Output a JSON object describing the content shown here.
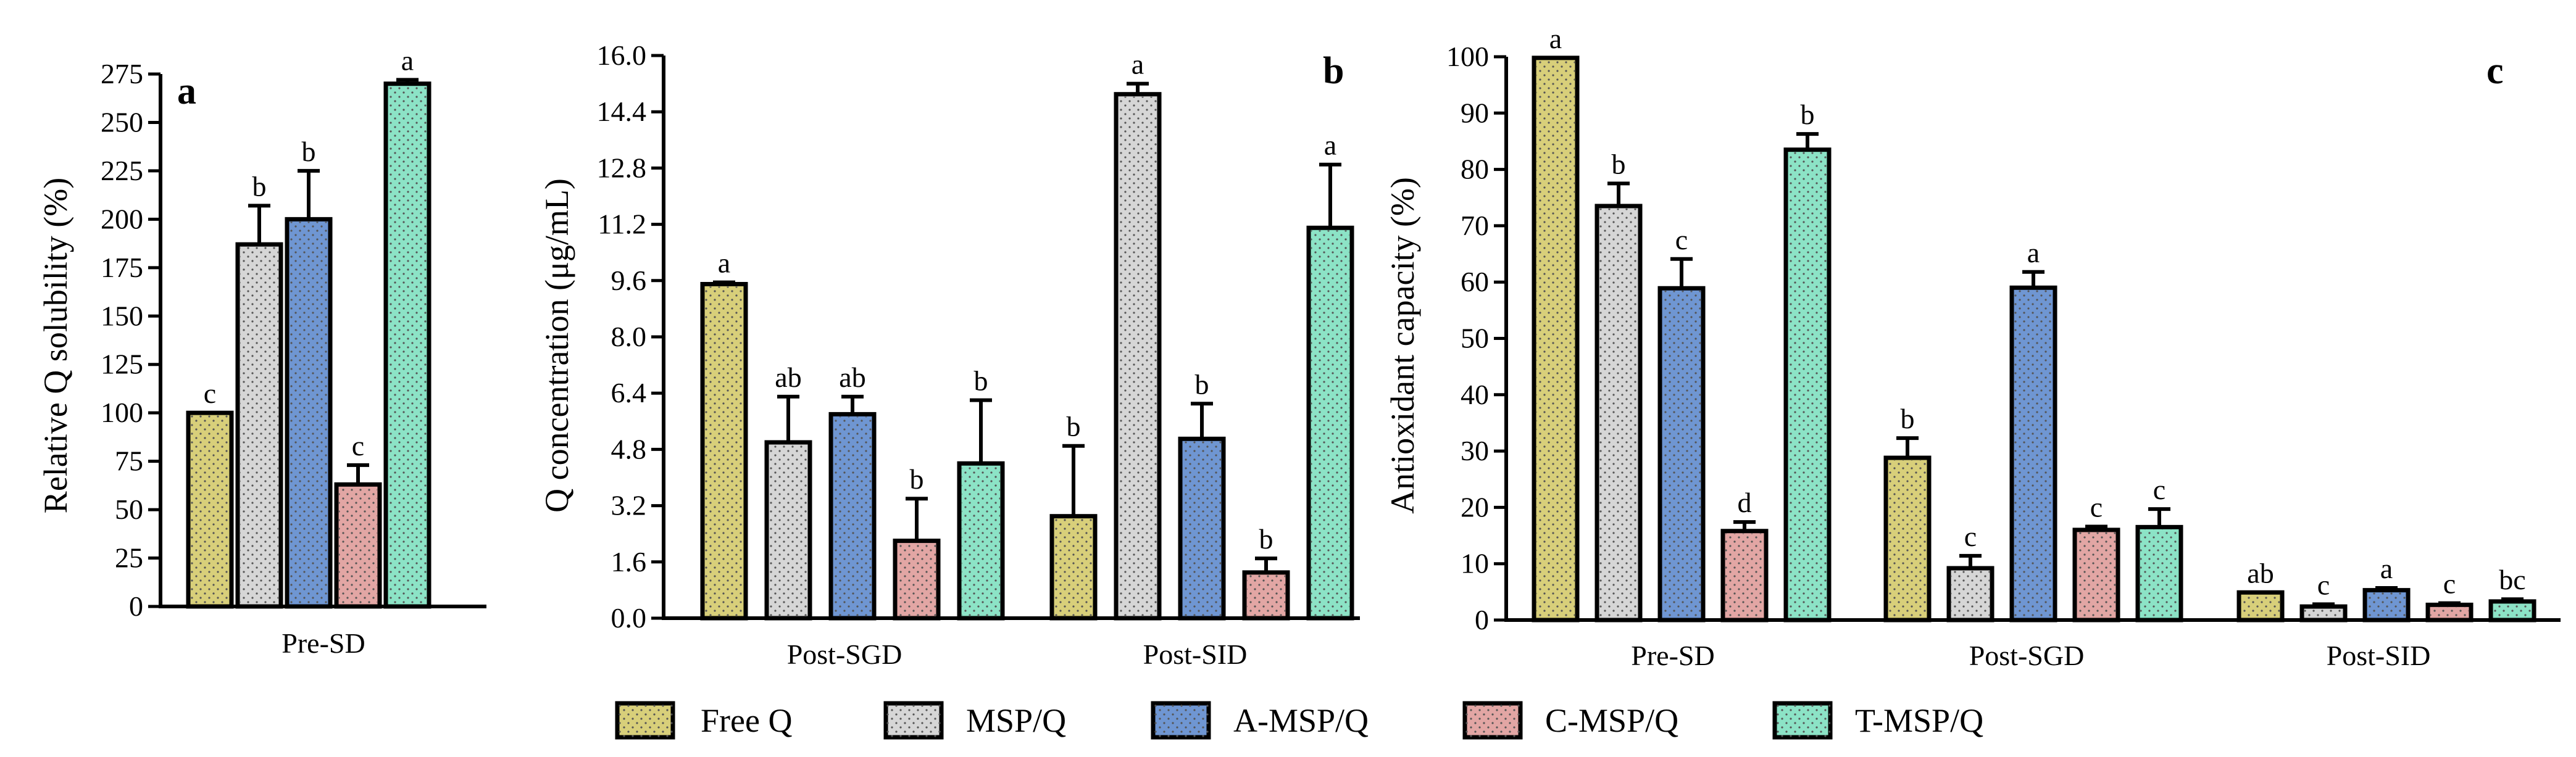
{
  "legend": [
    {
      "label": "Free Q",
      "color": "#d8cf7a"
    },
    {
      "label": "MSP/Q",
      "color": "#d6d6d6"
    },
    {
      "label": "A-MSP/Q",
      "color": "#6f96d2"
    },
    {
      "label": "C-MSP/Q",
      "color": "#e2a6a4"
    },
    {
      "label": "T-MSP/Q",
      "color": "#8ce3c6"
    }
  ],
  "chart_data": [
    {
      "panel": "a",
      "type": "bar",
      "ylabel": "Relative Q solubility (%)",
      "ylim": [
        0,
        275
      ],
      "yticks": [
        0,
        25,
        50,
        75,
        100,
        125,
        150,
        175,
        200,
        225,
        250,
        275
      ],
      "categories": [
        "Pre-SD"
      ],
      "series": [
        {
          "name": "Free Q",
          "values": [
            100
          ],
          "errors": [
            0
          ],
          "labels": [
            "c"
          ]
        },
        {
          "name": "MSP/Q",
          "values": [
            187
          ],
          "errors": [
            20
          ],
          "labels": [
            "b"
          ]
        },
        {
          "name": "A-MSP/Q",
          "values": [
            200
          ],
          "errors": [
            25
          ],
          "labels": [
            "b"
          ]
        },
        {
          "name": "C-MSP/Q",
          "values": [
            63
          ],
          "errors": [
            10
          ],
          "labels": [
            "c"
          ]
        },
        {
          "name": "T-MSP/Q",
          "values": [
            270
          ],
          "errors": [
            2
          ],
          "labels": [
            "a"
          ]
        }
      ]
    },
    {
      "panel": "b",
      "type": "bar",
      "ylabel": "Q concentration (μg/mL)",
      "ylim": [
        0,
        16
      ],
      "yticks": [
        "0.0",
        "1.6",
        "3.2",
        "4.8",
        "6.4",
        "8.0",
        "9.6",
        "11.2",
        "12.8",
        "14.4",
        "16.0"
      ],
      "categories": [
        "Post-SGD",
        "Post-SID"
      ],
      "series": [
        {
          "name": "Free Q",
          "values": [
            9.5,
            2.9
          ],
          "errors": [
            0.05,
            2.0
          ],
          "labels": [
            "a",
            "b"
          ]
        },
        {
          "name": "MSP/Q",
          "values": [
            5.0,
            14.9
          ],
          "errors": [
            1.3,
            0.3
          ],
          "labels": [
            "ab",
            "a"
          ]
        },
        {
          "name": "A-MSP/Q",
          "values": [
            5.8,
            5.1
          ],
          "errors": [
            0.5,
            1.0
          ],
          "labels": [
            "ab",
            "b"
          ]
        },
        {
          "name": "C-MSP/Q",
          "values": [
            2.2,
            1.3
          ],
          "errors": [
            1.2,
            0.4
          ],
          "labels": [
            "b",
            "b"
          ]
        },
        {
          "name": "T-MSP/Q",
          "values": [
            4.4,
            11.1
          ],
          "errors": [
            1.8,
            1.8
          ],
          "labels": [
            "b",
            "a"
          ]
        }
      ]
    },
    {
      "panel": "c",
      "type": "bar",
      "ylabel": "Antioxidant capacity (%)",
      "ylim": [
        0,
        100
      ],
      "yticks": [
        0,
        10,
        20,
        30,
        40,
        50,
        60,
        70,
        80,
        90,
        100
      ],
      "categories": [
        "Pre-SD",
        "Post-SGD",
        "Post-SID"
      ],
      "series": [
        {
          "name": "Free Q",
          "values": [
            99.8,
            28.8,
            4.9
          ],
          "errors": [
            0,
            3.5,
            0
          ],
          "labels": [
            "a",
            "b",
            "ab"
          ]
        },
        {
          "name": "MSP/Q",
          "values": [
            73.5,
            9.2,
            2.4
          ],
          "errors": [
            4.0,
            2.2,
            0.4
          ],
          "labels": [
            "b",
            "c",
            "c"
          ]
        },
        {
          "name": "A-MSP/Q",
          "values": [
            58.9,
            59.0,
            5.3
          ],
          "errors": [
            5.2,
            2.8,
            0.4
          ],
          "labels": [
            "c",
            "a",
            "a"
          ]
        },
        {
          "name": "C-MSP/Q",
          "values": [
            15.8,
            16.0,
            2.7
          ],
          "errors": [
            1.6,
            0.6,
            0.3
          ],
          "labels": [
            "d",
            "c",
            "c"
          ]
        },
        {
          "name": "T-MSP/Q",
          "values": [
            83.5,
            16.5,
            3.3
          ],
          "errors": [
            2.8,
            3.2,
            0.4
          ],
          "labels": [
            "b",
            "c",
            "bc"
          ]
        }
      ]
    }
  ]
}
